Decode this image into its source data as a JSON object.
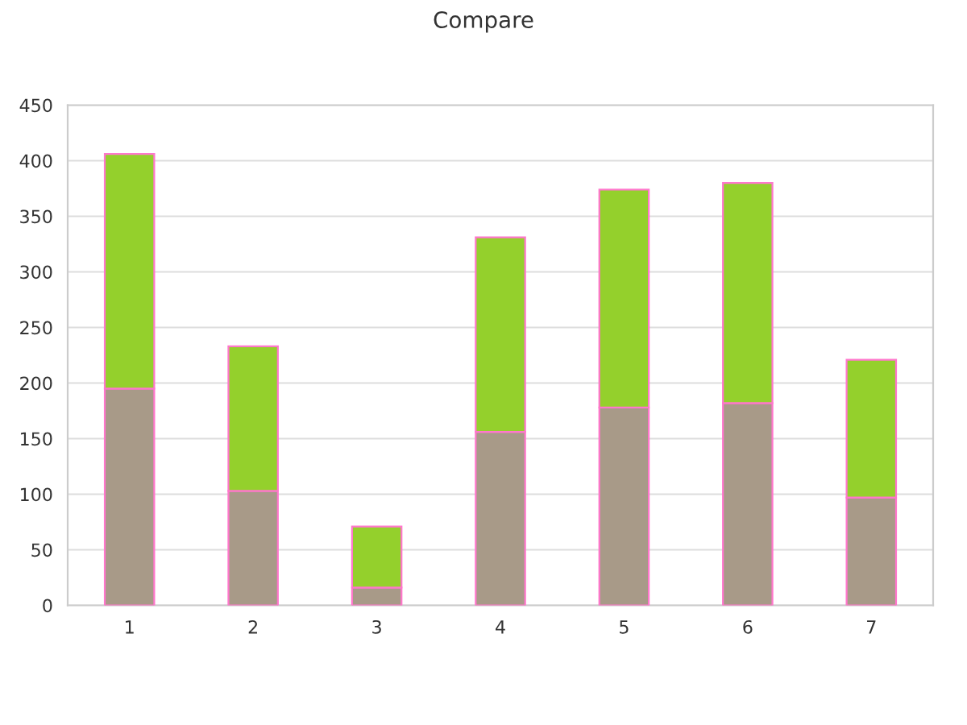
{
  "chart_data": {
    "type": "bar",
    "title": "Compare",
    "stacked": true,
    "categories": [
      "1",
      "2",
      "3",
      "4",
      "5",
      "6",
      "7"
    ],
    "series": [
      {
        "color": "#a89a88",
        "values": [
          195,
          103,
          16,
          156,
          178,
          182,
          97
        ]
      },
      {
        "color": "#94d02c",
        "values": [
          211,
          130,
          55,
          175,
          196,
          198,
          124
        ]
      }
    ],
    "ylim": [
      0,
      450
    ],
    "yticks": [
      0,
      50,
      100,
      150,
      200,
      250,
      300,
      350,
      400,
      450
    ],
    "grid": "y",
    "legend": false
  }
}
